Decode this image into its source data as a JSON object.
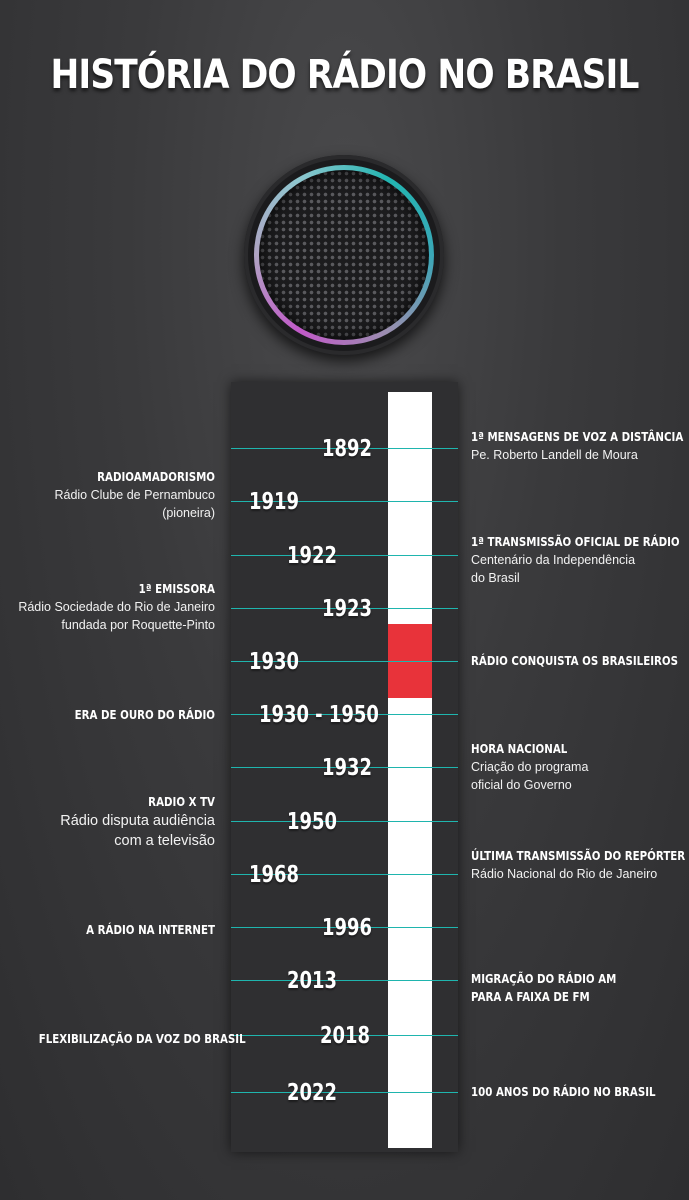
{
  "title": "HISTÓRIA DO RÁDIO NO BRASIL",
  "years": [
    "1892",
    "1919",
    "1922",
    "1923",
    "1930",
    "1930 - 1950",
    "1932",
    "1950",
    "1968",
    "1996",
    "2013",
    "2018",
    "2022"
  ],
  "events": {
    "e1892": {
      "head": "1ª MENSAGENS DE VOZ A DISTÂNCIA",
      "desc": "Pe. Roberto Landell de Moura"
    },
    "e1919": {
      "head": "RADIOAMADORISMO",
      "desc1": "Rádio Clube de Pernambuco",
      "desc2": "(pioneira)"
    },
    "e1922": {
      "head": "1ª TRANSMISSÃO OFICIAL DE RÁDIO",
      "desc1": "Centenário da Independência",
      "desc2": "do Brasil"
    },
    "e1923": {
      "head": "1ª EMISSORA",
      "desc1": "Rádio Sociedade do Rio de Janeiro",
      "desc2": "fundada por Roquette-Pinto"
    },
    "e1930": {
      "head": "RÁDIO CONQUISTA OS BRASILEIROS"
    },
    "e1930_1950": {
      "head": "ERA DE OURO DO RÁDIO"
    },
    "e1932": {
      "head": "HORA NACIONAL",
      "desc1": "Criação do programa",
      "desc2": "oficial do Governo"
    },
    "e1950": {
      "head": "RADIO X TV",
      "desc1": "Rádio disputa audiência",
      "desc2": "com a televisão"
    },
    "e1968": {
      "head": "ÚLTIMA TRANSMISSÃO DO REPÓRTER ESSO",
      "desc": "Rádio Nacional do Rio de Janeiro"
    },
    "e1996": {
      "head": "A RÁDIO NA INTERNET"
    },
    "e2013": {
      "head1": "MIGRAÇÃO DO RÁDIO AM",
      "head2": "PARA A FAIXA DE FM"
    },
    "e2018": {
      "head": "FLEXIBILIZAÇÃO DA VOZ DO BRASIL"
    },
    "e2022": {
      "head": "100 ANOS DO RÁDIO NO BRASIL"
    }
  },
  "colors": {
    "accent_line": "#1fb5ae",
    "highlight": "#e8333a",
    "bar": "#ffffff"
  },
  "icons": {
    "speaker": "speaker-icon"
  }
}
